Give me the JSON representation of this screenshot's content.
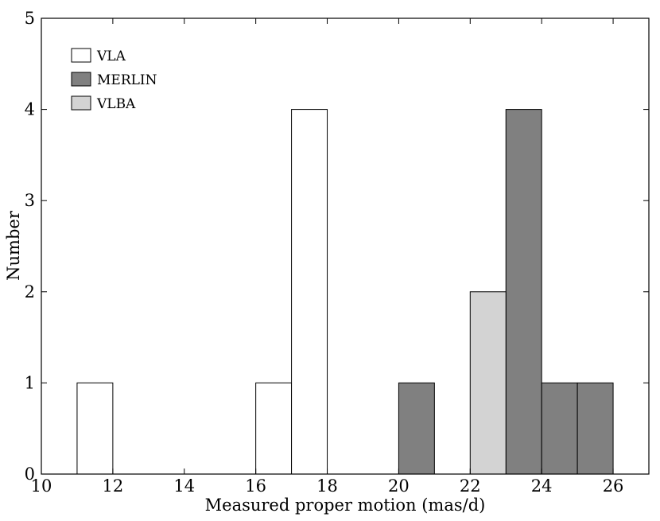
{
  "chart_data": {
    "type": "bar",
    "title": "",
    "xlabel": "Measured proper motion (mas/d)",
    "ylabel": "Number",
    "xlim": [
      10,
      27
    ],
    "ylim": [
      0,
      5
    ],
    "xticks": [
      "10",
      "12",
      "14",
      "16",
      "18",
      "20",
      "22",
      "24",
      "26"
    ],
    "yticks": [
      "0",
      "1",
      "2",
      "3",
      "4",
      "5"
    ],
    "grid": false,
    "legend_position": "top-left",
    "series": [
      {
        "name": "VLA",
        "color": "#ffffff",
        "bins": [
          {
            "x0": 11,
            "x1": 12,
            "count": 1
          },
          {
            "x0": 16,
            "x1": 17,
            "count": 1
          },
          {
            "x0": 17,
            "x1": 18,
            "count": 4
          }
        ]
      },
      {
        "name": "MERLIN",
        "color": "#808080",
        "bins": [
          {
            "x0": 20,
            "x1": 21,
            "count": 1
          },
          {
            "x0": 23,
            "x1": 24,
            "count": 4
          },
          {
            "x0": 24,
            "x1": 25,
            "count": 1
          },
          {
            "x0": 25,
            "x1": 26,
            "count": 1
          }
        ]
      },
      {
        "name": "VLBA",
        "color": "#d3d3d3",
        "bins": [
          {
            "x0": 22,
            "x1": 23,
            "count": 2
          }
        ]
      }
    ]
  }
}
